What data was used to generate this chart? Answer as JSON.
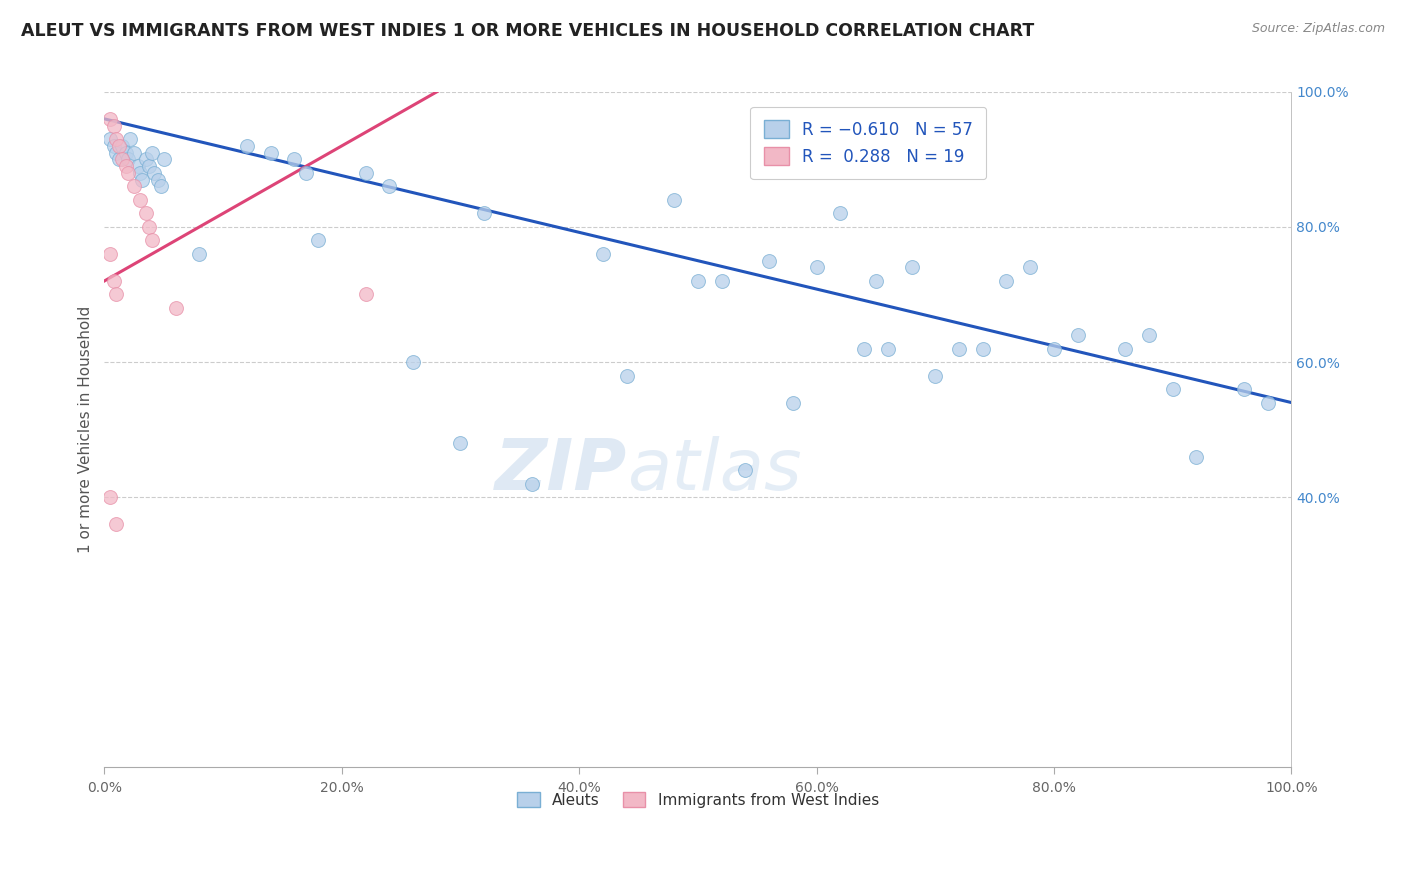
{
  "title": "ALEUT VS IMMIGRANTS FROM WEST INDIES 1 OR MORE VEHICLES IN HOUSEHOLD CORRELATION CHART",
  "source": "Source: ZipAtlas.com",
  "ylabel": "1 or more Vehicles in Household",
  "xlim": [
    0,
    1.0
  ],
  "ylim": [
    0,
    1.0
  ],
  "blue_scatter_x": [
    0.005,
    0.008,
    0.01,
    0.012,
    0.015,
    0.018,
    0.02,
    0.022,
    0.025,
    0.028,
    0.03,
    0.032,
    0.035,
    0.038,
    0.04,
    0.042,
    0.045,
    0.048,
    0.05,
    0.12,
    0.14,
    0.16,
    0.17,
    0.22,
    0.24,
    0.32,
    0.42,
    0.48,
    0.52,
    0.56,
    0.62,
    0.65,
    0.68,
    0.72,
    0.76,
    0.78,
    0.8,
    0.82,
    0.86,
    0.88,
    0.9,
    0.92,
    0.96,
    0.98,
    0.7,
    0.64,
    0.66,
    0.74,
    0.5,
    0.44,
    0.58,
    0.3,
    0.36,
    0.54,
    0.08,
    0.18,
    0.26,
    0.6
  ],
  "blue_scatter_y": [
    0.93,
    0.92,
    0.91,
    0.9,
    0.92,
    0.91,
    0.9,
    0.93,
    0.91,
    0.89,
    0.88,
    0.87,
    0.9,
    0.89,
    0.91,
    0.88,
    0.87,
    0.86,
    0.9,
    0.92,
    0.91,
    0.9,
    0.88,
    0.88,
    0.86,
    0.82,
    0.76,
    0.84,
    0.72,
    0.75,
    0.82,
    0.72,
    0.74,
    0.62,
    0.72,
    0.74,
    0.62,
    0.64,
    0.62,
    0.64,
    0.56,
    0.46,
    0.56,
    0.54,
    0.58,
    0.62,
    0.62,
    0.62,
    0.72,
    0.58,
    0.54,
    0.48,
    0.42,
    0.44,
    0.76,
    0.78,
    0.6,
    0.74
  ],
  "pink_scatter_x": [
    0.005,
    0.008,
    0.01,
    0.012,
    0.015,
    0.018,
    0.02,
    0.025,
    0.03,
    0.035,
    0.038,
    0.04,
    0.005,
    0.008,
    0.01,
    0.005,
    0.01,
    0.22,
    0.06
  ],
  "pink_scatter_y": [
    0.96,
    0.95,
    0.93,
    0.92,
    0.9,
    0.89,
    0.88,
    0.86,
    0.84,
    0.82,
    0.8,
    0.78,
    0.76,
    0.72,
    0.7,
    0.4,
    0.36,
    0.7,
    0.68
  ],
  "blue_line_x": [
    0.0,
    1.0
  ],
  "blue_line_y": [
    0.96,
    0.54
  ],
  "pink_line_x": [
    -0.02,
    0.3
  ],
  "pink_line_y": [
    0.7,
    1.02
  ],
  "scatter_size": 100,
  "scatter_alpha": 0.75,
  "blue_color": "#b8d0ea",
  "pink_color": "#f2b8c6",
  "blue_edge": "#7aafd4",
  "pink_edge": "#e890a8",
  "line_blue": "#2255bb",
  "line_pink": "#dd4477",
  "watermark_zip": "ZIP",
  "watermark_atlas": "atlas",
  "background_color": "#ffffff",
  "grid_color": "#cccccc"
}
